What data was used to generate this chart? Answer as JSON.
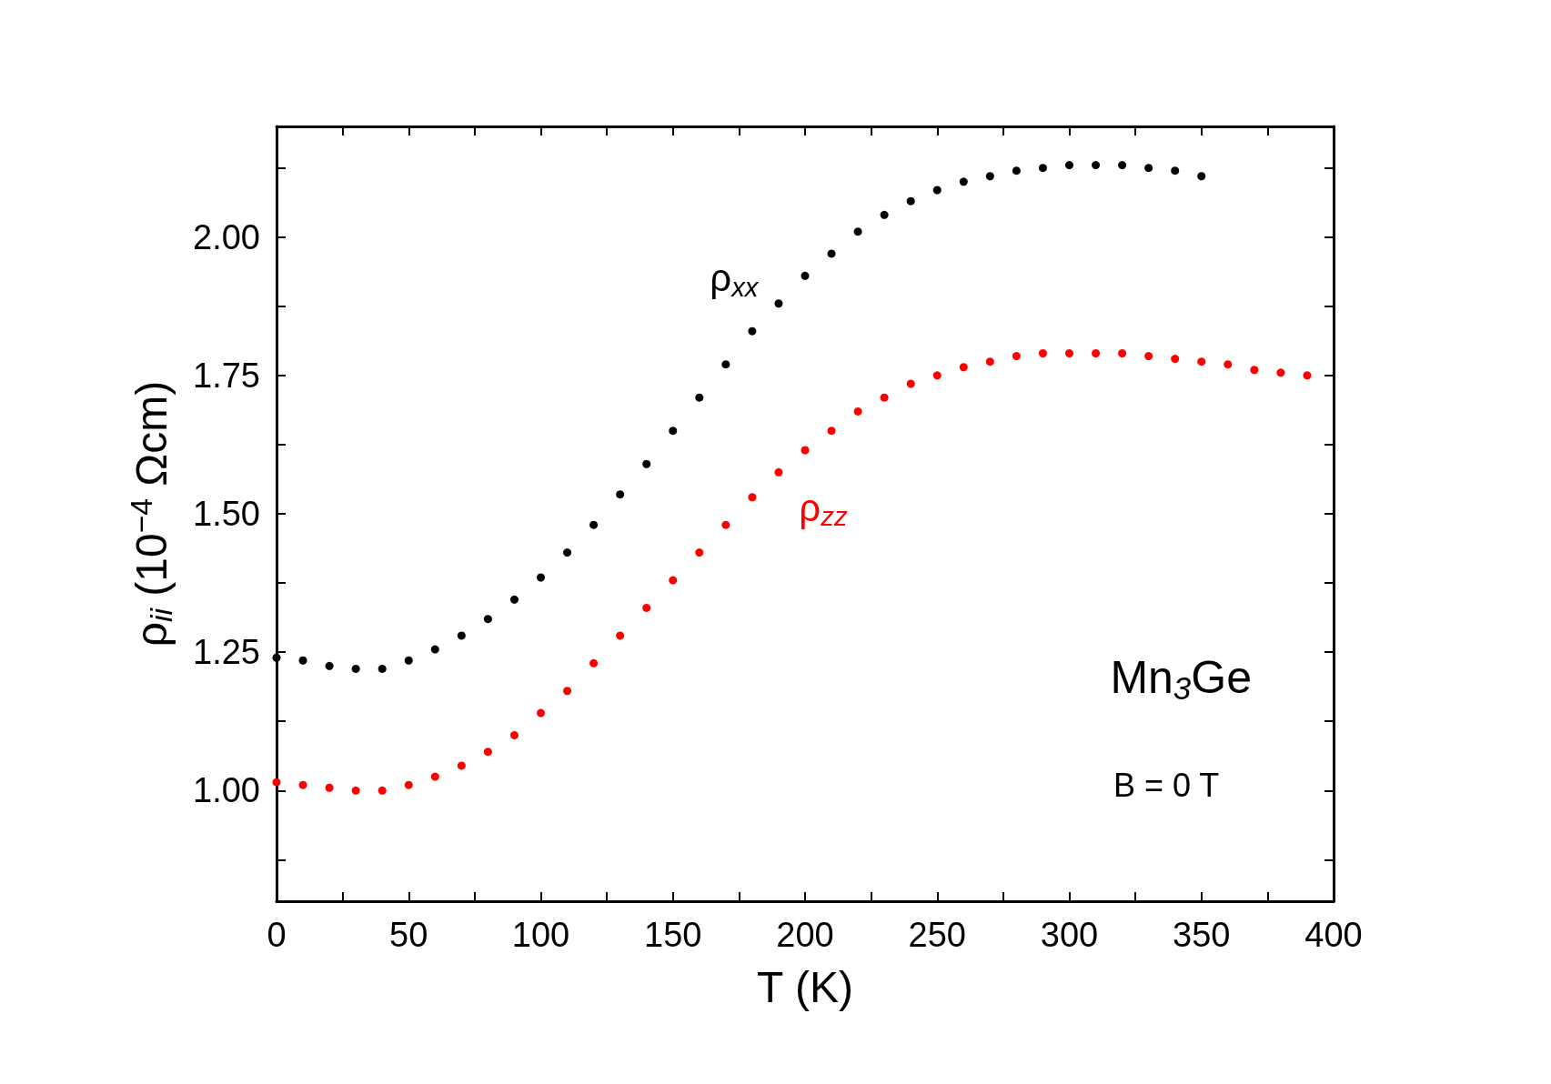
{
  "chart_data": {
    "type": "scatter",
    "xlabel": "T (K)",
    "ylabel": "ρ$_{ii}$ (10$^{−4}$ Ωcm)",
    "xlim": [
      0,
      400
    ],
    "ylim": [
      0.8,
      2.2
    ],
    "xticks": [
      0,
      {
        "value": 25,
        "label": null
      },
      50,
      {
        "value": 75,
        "label": null
      },
      100,
      {
        "value": 125,
        "label": null
      },
      150,
      {
        "value": 175,
        "label": null
      },
      200,
      {
        "value": 225,
        "label": null
      },
      250,
      {
        "value": 275,
        "label": null
      },
      300,
      {
        "value": 325,
        "label": null
      },
      350,
      {
        "value": 375,
        "label": null
      },
      400
    ],
    "yticks": [
      {
        "value": 0.875,
        "label": null
      },
      {
        "value": 1,
        "label": "1.00"
      },
      {
        "value": 1.125,
        "label": null
      },
      {
        "value": 1.25,
        "label": "1.25"
      },
      {
        "value": 1.375,
        "label": null
      },
      {
        "value": 1.5,
        "label": "1.50"
      },
      {
        "value": 1.625,
        "label": null
      },
      {
        "value": 1.75,
        "label": "1.75"
      },
      {
        "value": 1.875,
        "label": null
      },
      {
        "value": 2,
        "label": "2.00"
      },
      {
        "value": 2.125,
        "label": null
      }
    ],
    "marker": "circle",
    "grid": false,
    "legend": false,
    "annotations": [
      "Mn$_{3}$Ge",
      "B = 0 T"
    ],
    "series": [
      {
        "name": "ρ$_{xx}$",
        "color": "#000000",
        "x": [
          0,
          10,
          20,
          30,
          40,
          50,
          60,
          70,
          80,
          90,
          100,
          110,
          120,
          130,
          140,
          150,
          160,
          170,
          180,
          190,
          200,
          210,
          220,
          230,
          240,
          250,
          260,
          270,
          280,
          290,
          300,
          310,
          320,
          330,
          340,
          350
        ],
        "values": [
          1.24,
          1.235,
          1.225,
          1.22,
          1.22,
          1.235,
          1.255,
          1.28,
          1.31,
          1.345,
          1.385,
          1.43,
          1.48,
          1.535,
          1.59,
          1.65,
          1.71,
          1.77,
          1.83,
          1.88,
          1.93,
          1.97,
          2.01,
          2.04,
          2.065,
          2.085,
          2.1,
          2.11,
          2.12,
          2.125,
          2.13,
          2.13,
          2.13,
          2.125,
          2.12,
          2.11
        ]
      },
      {
        "name": "ρ$_{zz}$",
        "color": "#ff0000",
        "x": [
          0,
          10,
          20,
          30,
          40,
          50,
          60,
          70,
          80,
          90,
          100,
          110,
          120,
          130,
          140,
          150,
          160,
          170,
          180,
          190,
          200,
          210,
          220,
          230,
          240,
          250,
          260,
          270,
          280,
          290,
          300,
          310,
          320,
          330,
          340,
          350,
          360,
          370,
          380,
          390
        ],
        "values": [
          1.015,
          1.01,
          1.005,
          1.0,
          1.0,
          1.01,
          1.025,
          1.045,
          1.07,
          1.1,
          1.14,
          1.18,
          1.23,
          1.28,
          1.33,
          1.38,
          1.43,
          1.48,
          1.53,
          1.575,
          1.615,
          1.65,
          1.685,
          1.71,
          1.735,
          1.75,
          1.765,
          1.775,
          1.785,
          1.79,
          1.79,
          1.79,
          1.79,
          1.785,
          1.78,
          1.775,
          1.77,
          1.76,
          1.755,
          1.75
        ]
      }
    ]
  }
}
